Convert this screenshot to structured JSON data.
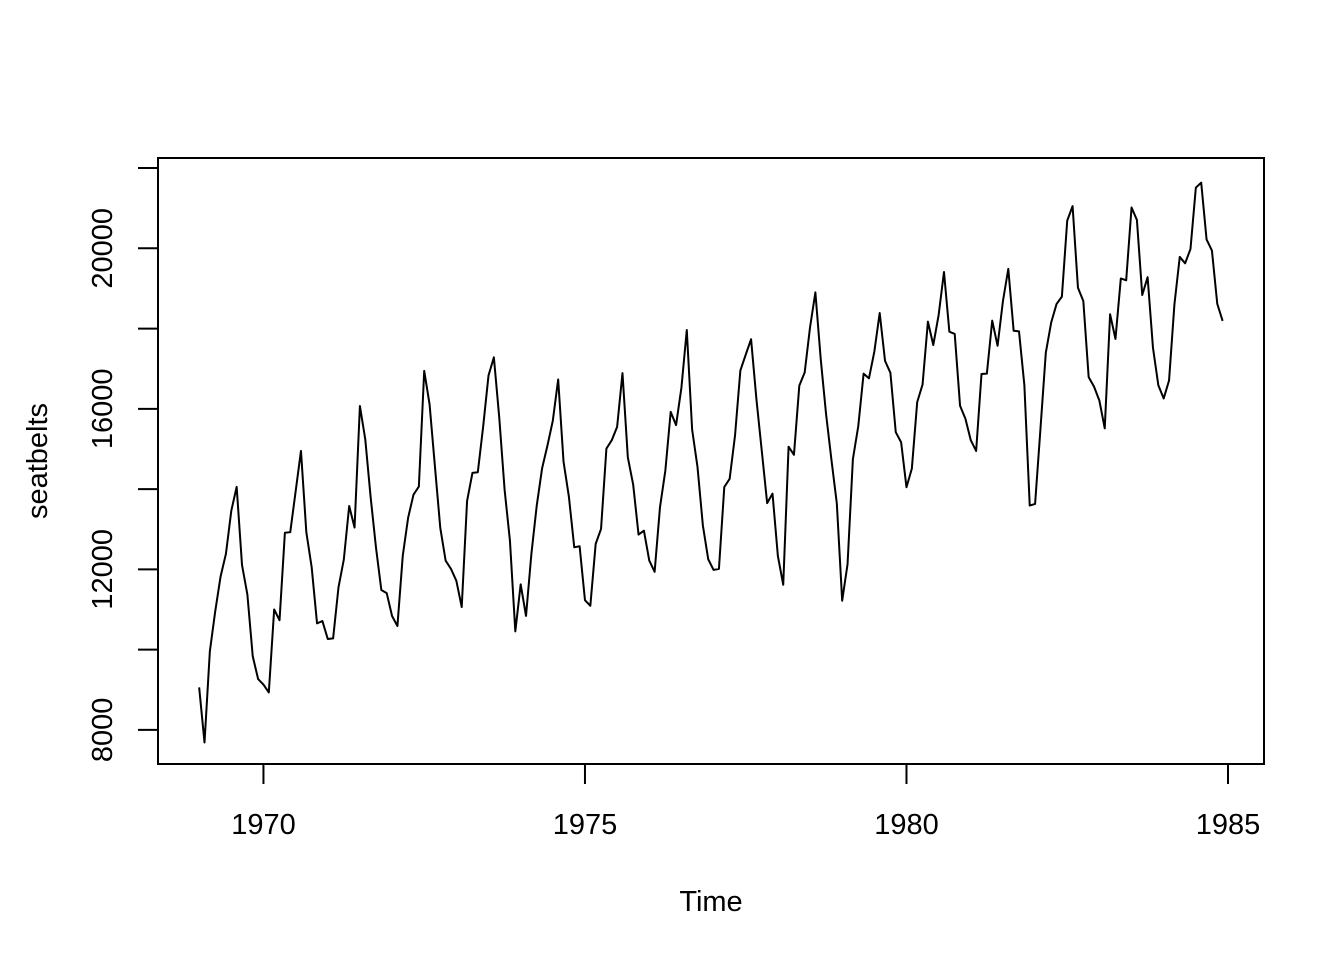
{
  "chart_data": {
    "type": "line",
    "title": "",
    "xlabel": "Time",
    "ylabel": "seatbelts",
    "x_start": 1969,
    "frequency": 12,
    "xlim": [
      1968.36,
      1985.56
    ],
    "ylim": [
      7150,
      22250
    ],
    "x_ticks": [
      1970,
      1975,
      1980,
      1985
    ],
    "x_tick_labels": [
      "1970",
      "1975",
      "1980",
      "1985"
    ],
    "y_ticks": [
      8000,
      10000,
      12000,
      14000,
      16000,
      18000,
      20000,
      22000
    ],
    "y_tick_labels": [
      "8000",
      "",
      "12000",
      "",
      "16000",
      "",
      "20000",
      ""
    ],
    "grid": false,
    "series": [
      {
        "values": [
          9059,
          7685,
          9963,
          10955,
          11823,
          12391,
          13460,
          14055,
          12106,
          11372,
          9834,
          9267,
          9130,
          8933,
          11000,
          10733,
          12912,
          12926,
          13938,
          14951,
          12927,
          12050,
          10654,
          10712,
          10266,
          10280,
          11550,
          12247,
          13579,
          13042,
          16069,
          15239,
          13800,
          12545,
          11485,
          11409,
          10837,
          10588,
          12343,
          13288,
          13860,
          14062,
          16946,
          16112,
          14563,
          13032,
          12215,
          12011,
          11715,
          11060,
          13705,
          14404,
          14421,
          15557,
          16831,
          17284,
          15788,
          13987,
          12710,
          10455,
          11627,
          10840,
          12384,
          13590,
          14518,
          15086,
          15705,
          16732,
          14685,
          13811,
          12549,
          12576,
          11232,
          11093,
          12635,
          13007,
          15008,
          15218,
          15550,
          16889,
          14789,
          14109,
          12866,
          12963,
          12218,
          11938,
          13549,
          14461,
          15925,
          15595,
          16529,
          17963,
          15481,
          14550,
          13096,
          12254,
          11986,
          12013,
          14052,
          14256,
          15331,
          16955,
          17349,
          17734,
          16234,
          14946,
          13650,
          13886,
          12334,
          11616,
          15056,
          14854,
          16579,
          16904,
          18029,
          18901,
          17237,
          15860,
          14726,
          13642,
          11219,
          12127,
          14747,
          15566,
          16877,
          16760,
          17425,
          18387,
          17195,
          16898,
          15418,
          15167,
          14046,
          14510,
          16167,
          16604,
          18173,
          17590,
          18337,
          19409,
          17923,
          17866,
          16076,
          15752,
          15218,
          14951,
          16869,
          16878,
          18197,
          17571,
          18684,
          19487,
          17946,
          17929,
          16590,
          13590,
          13631,
          15496,
          17395,
          18147,
          18610,
          18796,
          20690,
          21051,
          19018,
          18687,
          16789,
          16554,
          16204,
          15514,
          18356,
          17743,
          19248,
          19203,
          21016,
          20707,
          18836,
          19280,
          17522,
          16588,
          16258,
          16707,
          18599,
          19785,
          19626,
          19983,
          21510,
          21636,
          20222,
          19945,
          18616,
          18189
        ]
      }
    ]
  }
}
